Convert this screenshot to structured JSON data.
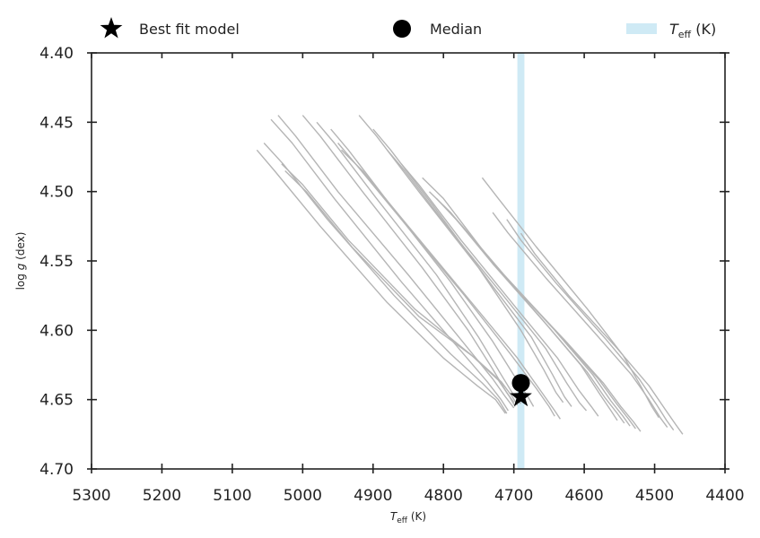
{
  "chart_data": {
    "type": "line",
    "title": "",
    "xlabel": {
      "main": "T",
      "sub": "eff",
      "unit": " (K)"
    },
    "ylabel": {
      "pre": "log ",
      "var": "g",
      "unit": " (dex)"
    },
    "xlim": [
      5300,
      4400
    ],
    "ylim": [
      4.4,
      4.7
    ],
    "x_inverted": true,
    "y_inverted": true,
    "x_ticks": [
      5300,
      5200,
      5100,
      5000,
      4900,
      4800,
      4700,
      4600,
      4500,
      4400
    ],
    "x_tick_labels": [
      "5300",
      "5200",
      "5100",
      "5000",
      "4900",
      "4800",
      "4700",
      "4600",
      "4500",
      "4400"
    ],
    "y_ticks": [
      4.4,
      4.45,
      4.5,
      4.55,
      4.6,
      4.65,
      4.7
    ],
    "y_tick_labels": [
      "4.40",
      "4.45",
      "4.50",
      "4.55",
      "4.60",
      "4.65",
      "4.70"
    ],
    "grid": false,
    "legend_position": "top",
    "legend": {
      "best_fit": "Best fit model",
      "median": "Median",
      "teff": {
        "main": "T",
        "sub": "eff",
        "unit": " (K)"
      }
    },
    "colors": {
      "tracks": "#b5b5b5",
      "band": "#cfeaf5",
      "markers": "#000000",
      "axes": "#222222"
    },
    "teff_band": [
      4695,
      4685
    ],
    "best_fit": {
      "x": 4690,
      "y": 4.648
    },
    "median": {
      "x": 4690,
      "y": 4.638
    },
    "tracks": [
      {
        "x": [
          5035,
          5010,
          4950,
          4850,
          4770,
          4730,
          4712,
          4700
        ],
        "y": [
          4.445,
          4.46,
          4.5,
          4.56,
          4.61,
          4.635,
          4.648,
          4.656
        ]
      },
      {
        "x": [
          5045,
          5015,
          4955,
          4860,
          4780,
          4738,
          4718,
          4708
        ],
        "y": [
          4.448,
          4.465,
          4.505,
          4.565,
          4.612,
          4.637,
          4.65,
          4.658
        ]
      },
      {
        "x": [
          5055,
          5028,
          4965,
          4870,
          4790,
          4745,
          4722,
          4710
        ],
        "y": [
          4.465,
          4.48,
          4.52,
          4.575,
          4.617,
          4.638,
          4.65,
          4.66
        ]
      },
      {
        "x": [
          5065,
          5040,
          4975,
          4880,
          4800,
          4752,
          4726,
          4712
        ],
        "y": [
          4.47,
          4.485,
          4.525,
          4.58,
          4.62,
          4.64,
          4.65,
          4.66
        ]
      },
      {
        "x": [
          5030,
          5000,
          4935,
          4840,
          4760,
          4722,
          4706,
          4698
        ],
        "y": [
          4.48,
          4.495,
          4.535,
          4.585,
          4.618,
          4.636,
          4.648,
          4.655
        ]
      },
      {
        "x": [
          5025,
          4995,
          4930,
          4835,
          4755,
          4718,
          4702,
          4695
        ],
        "y": [
          4.485,
          4.5,
          4.54,
          4.59,
          4.62,
          4.637,
          4.648,
          4.654
        ]
      },
      {
        "x": [
          5000,
          4975,
          4915,
          4830,
          4765,
          4730,
          4710,
          4700
        ],
        "y": [
          4.445,
          4.46,
          4.5,
          4.555,
          4.6,
          4.628,
          4.645,
          4.652
        ]
      },
      {
        "x": [
          4980,
          4955,
          4895,
          4810,
          4750,
          4718,
          4700,
          4690
        ],
        "y": [
          4.45,
          4.465,
          4.505,
          4.56,
          4.605,
          4.632,
          4.647,
          4.653
        ]
      },
      {
        "x": [
          4960,
          4935,
          4875,
          4790,
          4730,
          4698,
          4680,
          4672
        ],
        "y": [
          4.455,
          4.47,
          4.51,
          4.565,
          4.608,
          4.634,
          4.648,
          4.655
        ]
      },
      {
        "x": [
          4950,
          4925,
          4860,
          4770,
          4705,
          4668,
          4650,
          4642
        ],
        "y": [
          4.465,
          4.48,
          4.52,
          4.575,
          4.617,
          4.642,
          4.655,
          4.662
        ]
      },
      {
        "x": [
          4945,
          4915,
          4850,
          4760,
          4695,
          4660,
          4642,
          4634
        ],
        "y": [
          4.47,
          4.485,
          4.525,
          4.58,
          4.62,
          4.645,
          4.658,
          4.664
        ]
      },
      {
        "x": [
          4920,
          4895,
          4835,
          4750,
          4690,
          4658,
          4640,
          4630
        ],
        "y": [
          4.445,
          4.46,
          4.5,
          4.555,
          4.6,
          4.628,
          4.645,
          4.652
        ]
      },
      {
        "x": [
          4900,
          4875,
          4815,
          4735,
          4675,
          4645,
          4628,
          4618
        ],
        "y": [
          4.455,
          4.47,
          4.51,
          4.565,
          4.605,
          4.632,
          4.648,
          4.655
        ]
      },
      {
        "x": [
          4880,
          4855,
          4795,
          4715,
          4655,
          4625,
          4607,
          4597
        ],
        "y": [
          4.47,
          4.485,
          4.525,
          4.575,
          4.613,
          4.638,
          4.652,
          4.658
        ]
      },
      {
        "x": [
          4860,
          4835,
          4775,
          4695,
          4638,
          4608,
          4590,
          4580
        ],
        "y": [
          4.48,
          4.495,
          4.535,
          4.585,
          4.62,
          4.643,
          4.655,
          4.662
        ]
      },
      {
        "x": [
          4830,
          4800,
          4740,
          4660,
          4605,
          4578,
          4562,
          4553
        ],
        "y": [
          4.49,
          4.505,
          4.545,
          4.592,
          4.625,
          4.646,
          4.658,
          4.665
        ]
      },
      {
        "x": [
          4820,
          4790,
          4730,
          4650,
          4596,
          4570,
          4553,
          4543
        ],
        "y": [
          4.5,
          4.515,
          4.552,
          4.598,
          4.63,
          4.649,
          4.66,
          4.667
        ]
      },
      {
        "x": [
          4810,
          4782,
          4722,
          4642,
          4588,
          4562,
          4545,
          4535
        ],
        "y": [
          4.505,
          4.52,
          4.556,
          4.6,
          4.632,
          4.651,
          4.662,
          4.669
        ]
      },
      {
        "x": [
          4800,
          4773,
          4714,
          4634,
          4580,
          4554,
          4537,
          4527
        ],
        "y": [
          4.51,
          4.525,
          4.56,
          4.604,
          4.635,
          4.653,
          4.664,
          4.671
        ]
      },
      {
        "x": [
          4790,
          4765,
          4706,
          4626,
          4573,
          4548,
          4530,
          4520
        ],
        "y": [
          4.515,
          4.53,
          4.565,
          4.608,
          4.638,
          4.655,
          4.666,
          4.673
        ]
      },
      {
        "x": [
          4745,
          4722,
          4668,
          4595,
          4545,
          4520,
          4504,
          4494
        ],
        "y": [
          4.49,
          4.505,
          4.54,
          4.585,
          4.618,
          4.64,
          4.655,
          4.663
        ]
      },
      {
        "x": [
          4730,
          4708,
          4655,
          4583,
          4533,
          4508,
          4492,
          4482
        ],
        "y": [
          4.515,
          4.53,
          4.562,
          4.603,
          4.632,
          4.65,
          4.663,
          4.67
        ]
      },
      {
        "x": [
          4710,
          4690,
          4640,
          4570,
          4522,
          4498,
          4483,
          4473
        ],
        "y": [
          4.52,
          4.535,
          4.566,
          4.606,
          4.635,
          4.653,
          4.665,
          4.672
        ]
      },
      {
        "x": [
          4690,
          4670,
          4622,
          4555,
          4508,
          4485,
          4470,
          4460
        ],
        "y": [
          4.53,
          4.545,
          4.575,
          4.612,
          4.64,
          4.657,
          4.668,
          4.675
        ]
      }
    ]
  }
}
